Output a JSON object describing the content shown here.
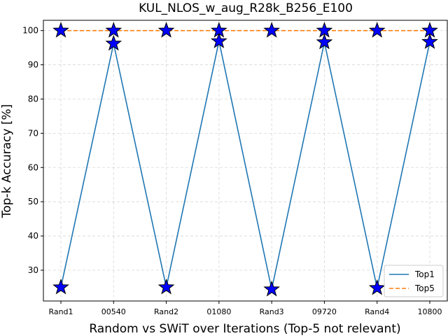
{
  "chart_data": {
    "type": "line",
    "title": "KUL_NLOS_w_aug_R28k_B256_E100",
    "xlabel": "Random vs SWiT over Iterations (Top-5 not relevant)",
    "ylabel": "Top-k Accuracy [%]",
    "categories": [
      "Rand1",
      "00540",
      "Rand2",
      "01080",
      "Rand3",
      "09720",
      "Rand4",
      "10800"
    ],
    "ylim": [
      21,
      103
    ],
    "yticks": [
      30,
      40,
      50,
      60,
      70,
      80,
      90,
      100
    ],
    "grid": true,
    "legend_position": "bottom-right",
    "series": [
      {
        "name": "Top1",
        "values": [
          25.0,
          96.2,
          25.0,
          96.9,
          24.4,
          96.6,
          24.8,
          96.7
        ],
        "color": "#1f77b4",
        "line_style": "solid",
        "marker": "star",
        "marker_color": "#0000ff"
      },
      {
        "name": "Top5",
        "values": [
          100,
          100,
          100,
          100,
          100,
          100,
          100,
          100
        ],
        "color": "#ff7f0e",
        "line_style": "dashed",
        "marker": "star",
        "marker_color": "#0000ff"
      }
    ]
  }
}
